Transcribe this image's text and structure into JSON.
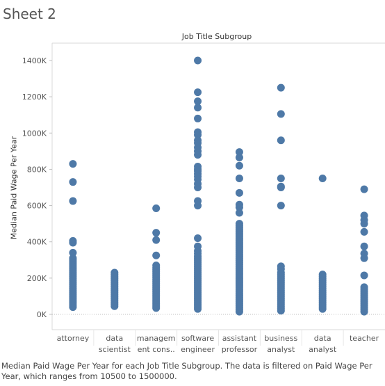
{
  "sheet": {
    "title": "Sheet 2"
  },
  "caption": "Median Paid Wage Per Year for each Job Title Subgroup. The data is filtered on Paid Wage Per Year, which ranges from 10500 to 1500000.",
  "chart_data": {
    "type": "scatter",
    "title": "Job Title Subgroup",
    "xlabel": "",
    "ylabel": "Median Paid Wage Per Year",
    "ylim": [
      0,
      1480000
    ],
    "y_ticks": [
      0,
      200000,
      400000,
      600000,
      800000,
      1000000,
      1200000,
      1400000
    ],
    "y_tick_labels": [
      "0K",
      "200K",
      "400K",
      "600K",
      "800K",
      "1000K",
      "1200K",
      "1400K"
    ],
    "grid": false,
    "marker_color": "#4e79a7",
    "categories": [
      [
        "attorney"
      ],
      [
        "data",
        "scientist"
      ],
      [
        "managem",
        "ent cons.."
      ],
      [
        "software",
        "engineer"
      ],
      [
        "assistant",
        "professor"
      ],
      [
        "business",
        "analyst"
      ],
      [
        "data",
        "analyst"
      ],
      [
        "teacher"
      ]
    ],
    "series": [
      {
        "category": "attorney",
        "range": [
          40000,
          300000
        ],
        "outliers": [
          830000,
          730000,
          625000,
          405000,
          395000,
          340000,
          310000
        ]
      },
      {
        "category": "data scientist",
        "range": [
          45000,
          230000
        ],
        "outliers": []
      },
      {
        "category": "management consulting",
        "range": [
          35000,
          270000
        ],
        "outliers": [
          585000,
          450000,
          410000,
          325000
        ]
      },
      {
        "category": "software engineer",
        "range": [
          30000,
          320000
        ],
        "outliers": [
          1400000,
          1225000,
          1175000,
          1140000,
          1080000,
          1005000,
          990000,
          960000,
          945000,
          920000,
          900000,
          880000,
          815000,
          800000,
          790000,
          775000,
          760000,
          745000,
          720000,
          700000,
          625000,
          600000,
          420000,
          375000,
          350000,
          335000
        ]
      },
      {
        "category": "assistant professor",
        "range": [
          15000,
          500000
        ],
        "outliers": [
          895000,
          865000,
          820000,
          750000,
          670000,
          605000,
          590000,
          560000
        ]
      },
      {
        "category": "business analyst",
        "range": [
          20000,
          230000
        ],
        "outliers": [
          1250000,
          1105000,
          960000,
          750000,
          705000,
          700000,
          600000,
          265000,
          250000
        ]
      },
      {
        "category": "data analyst",
        "range": [
          30000,
          220000
        ],
        "outliers": [
          750000
        ]
      },
      {
        "category": "teacher",
        "range": [
          15000,
          150000
        ],
        "outliers": [
          690000,
          545000,
          520000,
          500000,
          455000,
          375000,
          335000,
          310000,
          215000
        ]
      }
    ]
  }
}
